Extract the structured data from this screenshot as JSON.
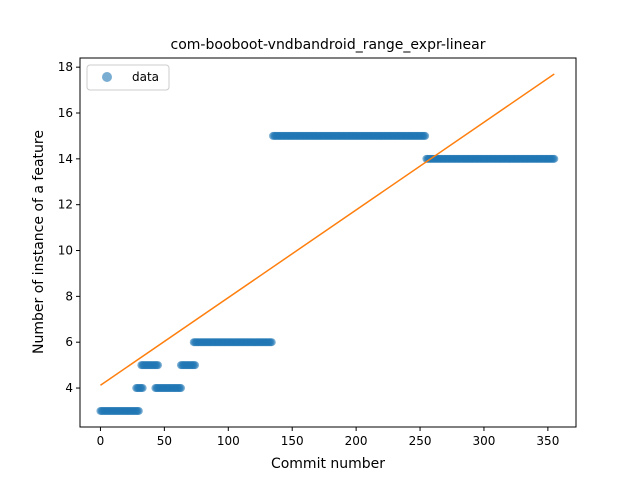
{
  "chart_data": {
    "type": "scatter",
    "title": "com-booboot-vndbandroid_range_expr-linear",
    "xlabel": "Commit number",
    "ylabel": "Number of instance of a feature",
    "xlim": [
      -16,
      372
    ],
    "ylim": [
      2.3,
      18.4
    ],
    "xticks": [
      0,
      50,
      100,
      150,
      200,
      250,
      300,
      350
    ],
    "yticks": [
      4,
      6,
      8,
      10,
      12,
      14,
      16,
      18
    ],
    "grid": false,
    "legend_position": "top-left",
    "colors": {
      "data": "#1f77b4",
      "fit": "#ff7f0e"
    },
    "series": [
      {
        "name": "data",
        "kind": "scatter",
        "segments": [
          {
            "x_start": 0,
            "x_end": 30,
            "y": 3
          },
          {
            "x_start": 28,
            "x_end": 33,
            "y": 4
          },
          {
            "x_start": 32,
            "x_end": 45,
            "y": 5
          },
          {
            "x_start": 43,
            "x_end": 63,
            "y": 4
          },
          {
            "x_start": 63,
            "x_end": 74,
            "y": 5
          },
          {
            "x_start": 73,
            "x_end": 134,
            "y": 6
          },
          {
            "x_start": 135,
            "x_end": 254,
            "y": 15
          },
          {
            "x_start": 255,
            "x_end": 355,
            "y": 14
          }
        ]
      },
      {
        "kind": "line",
        "x": [
          0,
          355
        ],
        "y": [
          4.12,
          17.7
        ]
      }
    ]
  }
}
